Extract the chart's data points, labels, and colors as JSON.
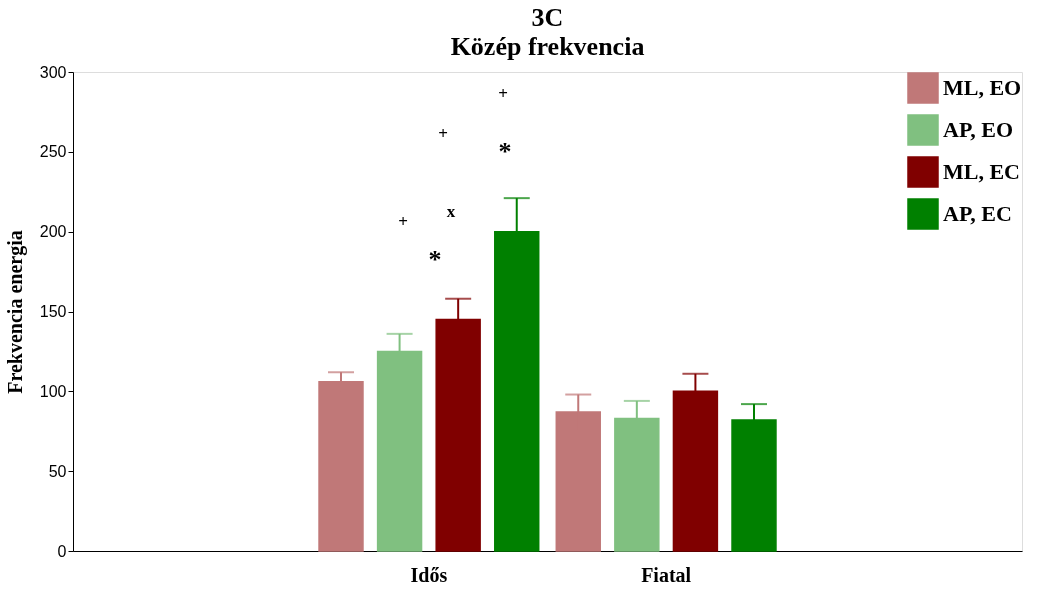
{
  "chart_data": {
    "type": "bar",
    "title": "3C",
    "subtitle": "Közép frekvencia",
    "ylabel": "Frekvencia energia",
    "categories": [
      "Idős",
      "Fiatal"
    ],
    "series": [
      {
        "name": "ML, EO",
        "color": "#c07878",
        "values": [
          106,
          87
        ],
        "errors": [
          6,
          11
        ]
      },
      {
        "name": "AP, EO",
        "color": "#80c080",
        "values": [
          125,
          83
        ],
        "errors": [
          11,
          11
        ]
      },
      {
        "name": "ML, EC",
        "color": "#800000",
        "values": [
          145,
          100
        ],
        "errors": [
          13,
          11
        ]
      },
      {
        "name": "AP, EC",
        "color": "#008000",
        "values": [
          200,
          82
        ],
        "errors": [
          21,
          10
        ]
      }
    ],
    "ylim": [
      0,
      300
    ],
    "yticks": [
      0,
      50,
      100,
      150,
      200,
      250,
      300
    ],
    "grid": false,
    "legend": "top right",
    "annotations": [
      "+",
      "+",
      "+",
      "*",
      "*",
      "x"
    ]
  }
}
